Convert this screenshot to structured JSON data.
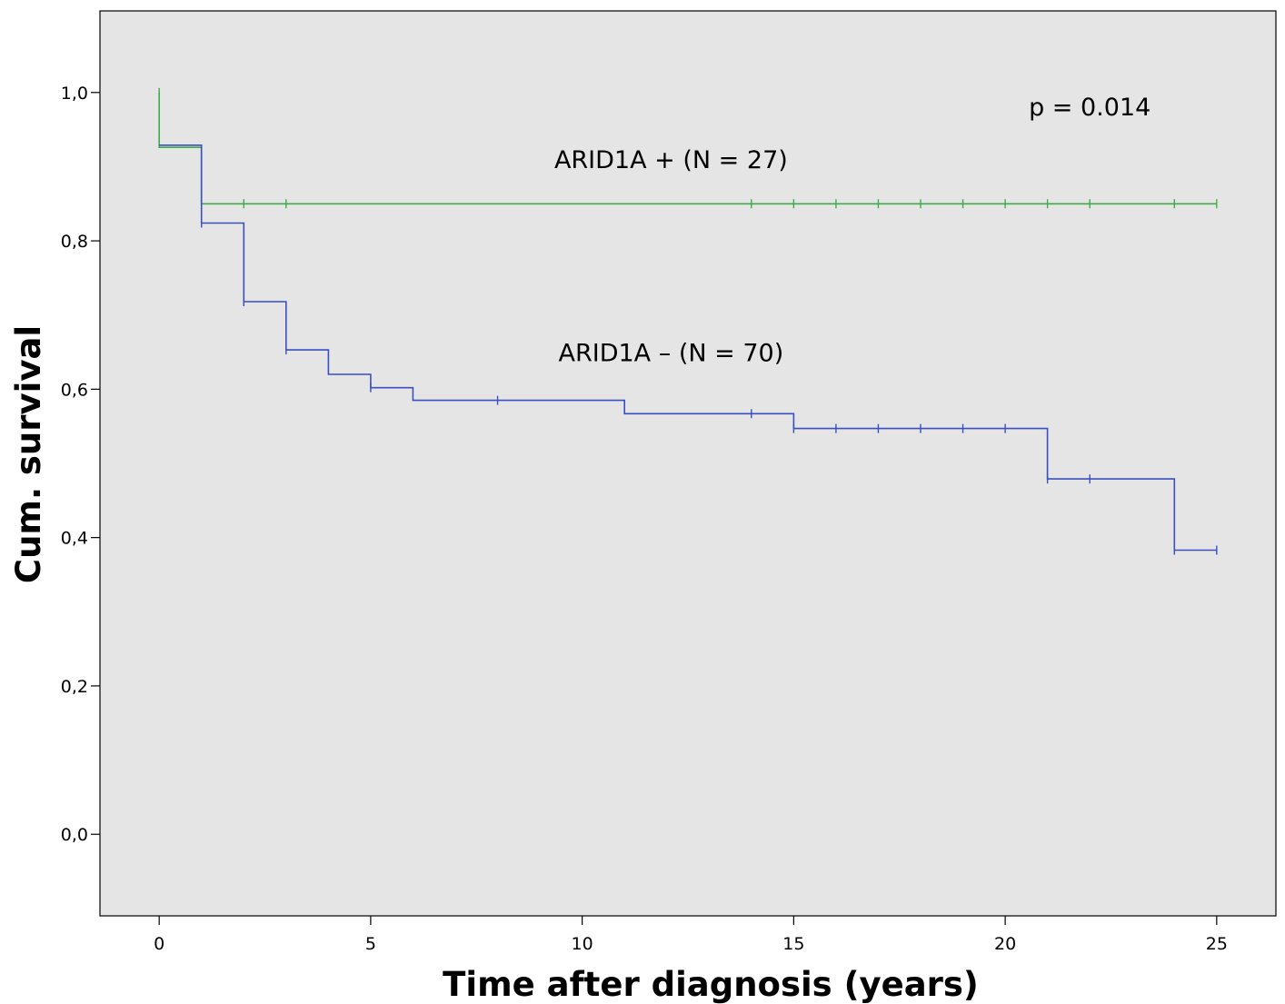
{
  "chart_data": {
    "type": "line",
    "subtype": "kaplan-meier",
    "title": "",
    "xlabel": "Time after diagnosis (years)",
    "ylabel": "Cum. survival",
    "xlim": [
      -1.4,
      26.4
    ],
    "ylim": [
      -0.11,
      1.11
    ],
    "x_ticks": [
      0,
      5,
      10,
      15,
      20,
      25
    ],
    "x_tick_labels": [
      "0",
      "5",
      "10",
      "15",
      "20",
      "25"
    ],
    "y_ticks": [
      0.0,
      0.2,
      0.4,
      0.6,
      0.8,
      1.0
    ],
    "y_tick_labels": [
      "0,0",
      "0,2",
      "0,4",
      "0,6",
      "0,8",
      "1,0"
    ],
    "grid": false,
    "plot_background": "#e5e5e5",
    "series": [
      {
        "label": "ARID1A + (N = 27)",
        "color": "#3fac4a",
        "steps": [
          [
            0,
            1.0
          ],
          [
            0,
            0.926
          ],
          [
            1,
            0.926
          ],
          [
            1,
            0.85
          ],
          [
            25,
            0.85
          ]
        ],
        "censored": [
          [
            0,
            1.0
          ],
          [
            1,
            0.85
          ],
          [
            2,
            0.85
          ],
          [
            3,
            0.85
          ],
          [
            14,
            0.85
          ],
          [
            15,
            0.85
          ],
          [
            16,
            0.85
          ],
          [
            17,
            0.85
          ],
          [
            18,
            0.85
          ],
          [
            19,
            0.85
          ],
          [
            20,
            0.85
          ],
          [
            21,
            0.85
          ],
          [
            22,
            0.85
          ],
          [
            24,
            0.85
          ],
          [
            25,
            0.85
          ]
        ]
      },
      {
        "label": "ARID1A – (N = 70)",
        "color": "#3a4fc0",
        "steps": [
          [
            0,
            0.929
          ],
          [
            1,
            0.929
          ],
          [
            1,
            0.824
          ],
          [
            2,
            0.824
          ],
          [
            2,
            0.718
          ],
          [
            3,
            0.718
          ],
          [
            3,
            0.653
          ],
          [
            4,
            0.653
          ],
          [
            4,
            0.62
          ],
          [
            5,
            0.62
          ],
          [
            5,
            0.602
          ],
          [
            6,
            0.602
          ],
          [
            6,
            0.585
          ],
          [
            11,
            0.585
          ],
          [
            11,
            0.567
          ],
          [
            15,
            0.567
          ],
          [
            15,
            0.547
          ],
          [
            21,
            0.547
          ],
          [
            21,
            0.479
          ],
          [
            24,
            0.479
          ],
          [
            24,
            0.383
          ],
          [
            25,
            0.383
          ]
        ],
        "censored": [
          [
            1,
            0.824
          ],
          [
            2,
            0.718
          ],
          [
            3,
            0.653
          ],
          [
            5,
            0.602
          ],
          [
            8,
            0.585
          ],
          [
            14,
            0.567
          ],
          [
            15,
            0.547
          ],
          [
            16,
            0.547
          ],
          [
            17,
            0.547
          ],
          [
            18,
            0.547
          ],
          [
            19,
            0.547
          ],
          [
            20,
            0.547
          ],
          [
            21,
            0.479
          ],
          [
            22,
            0.479
          ],
          [
            24,
            0.383
          ],
          [
            25,
            0.383
          ]
        ]
      }
    ],
    "annotations": [
      {
        "text": "p = 0.014",
        "x": 22.0,
        "y": 0.969
      },
      {
        "text": "ARID1A + (N = 27)",
        "x": 12.1,
        "y": 0.898
      },
      {
        "text": "ARID1A – (N = 70)",
        "x": 12.1,
        "y": 0.638
      }
    ]
  }
}
